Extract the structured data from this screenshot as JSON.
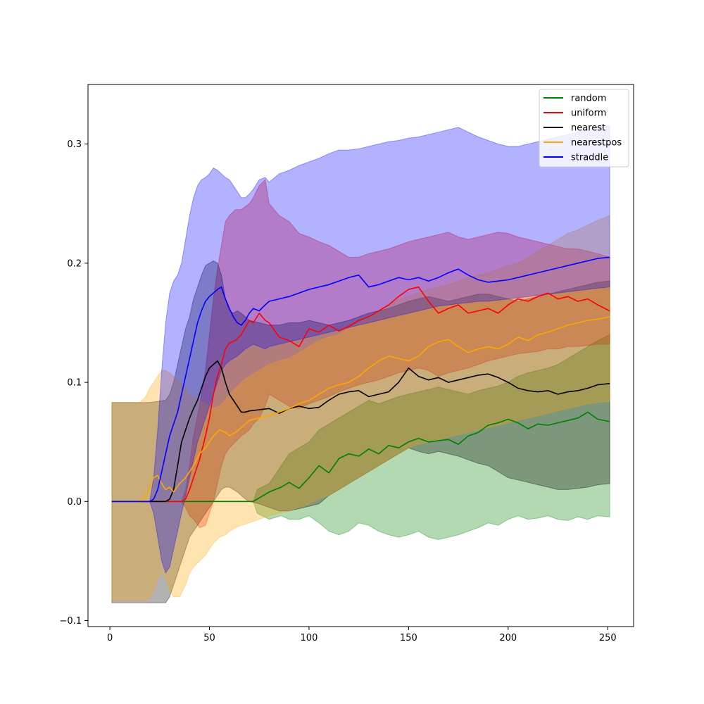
{
  "chart_data": {
    "type": "line",
    "title": "",
    "xlabel": "",
    "ylabel": "",
    "xlim": [
      -11,
      263
    ],
    "ylim": [
      -0.105,
      0.35
    ],
    "xticks": [
      0,
      50,
      100,
      150,
      200,
      250
    ],
    "xtick_labels": [
      "0",
      "50",
      "100",
      "150",
      "200",
      "250"
    ],
    "yticks": [
      -0.1,
      0.0,
      0.1,
      0.2,
      0.3
    ],
    "ytick_labels": [
      "−0.1",
      "0.0",
      "0.1",
      "0.2",
      "0.3"
    ],
    "grid": false,
    "legend_position": "top-right",
    "series": [
      {
        "name": "random",
        "color": "#008000",
        "x": [
          1,
          20,
          40,
          60,
          72,
          74,
          80,
          86,
          90,
          95,
          100,
          105,
          110,
          115,
          120,
          125,
          130,
          135,
          140,
          145,
          150,
          155,
          160,
          165,
          170,
          175,
          180,
          185,
          190,
          195,
          200,
          205,
          210,
          215,
          220,
          225,
          230,
          235,
          240,
          245,
          251
        ],
        "values": [
          0,
          0,
          0,
          0,
          0,
          0.002,
          0.008,
          0.012,
          0.016,
          0.011,
          0.02,
          0.03,
          0.024,
          0.036,
          0.04,
          0.038,
          0.044,
          0.04,
          0.047,
          0.045,
          0.05,
          0.053,
          0.05,
          0.051,
          0.052,
          0.048,
          0.055,
          0.058,
          0.064,
          0.066,
          0.069,
          0.066,
          0.061,
          0.065,
          0.064,
          0.066,
          0.068,
          0.07,
          0.075,
          0.069,
          0.067
        ],
        "upper": [
          0,
          0,
          0,
          0,
          0,
          0.01,
          0.015,
          0.03,
          0.04,
          0.045,
          0.05,
          0.06,
          0.065,
          0.07,
          0.075,
          0.08,
          0.085,
          0.082,
          0.085,
          0.088,
          0.09,
          0.092,
          0.094,
          0.096,
          0.094,
          0.092,
          0.09,
          0.093,
          0.095,
          0.097,
          0.1,
          0.105,
          0.108,
          0.11,
          0.112,
          0.115,
          0.12,
          0.125,
          0.13,
          0.135,
          0.14
        ],
        "lower": [
          0,
          0,
          0,
          0,
          0,
          -0.01,
          -0.015,
          -0.012,
          -0.015,
          -0.015,
          -0.012,
          -0.018,
          -0.025,
          -0.028,
          -0.025,
          -0.018,
          -0.02,
          -0.025,
          -0.028,
          -0.03,
          -0.028,
          -0.025,
          -0.03,
          -0.032,
          -0.03,
          -0.028,
          -0.025,
          -0.022,
          -0.018,
          -0.02,
          -0.015,
          -0.012,
          -0.015,
          -0.014,
          -0.012,
          -0.015,
          -0.016,
          -0.013,
          -0.015,
          -0.012,
          -0.013
        ]
      },
      {
        "name": "uniform",
        "color": "#ff0000",
        "x": [
          1,
          20,
          36,
          38,
          40,
          42,
          45,
          48,
          50,
          52,
          54,
          56,
          58,
          60,
          63,
          66,
          70,
          72,
          75,
          78,
          80,
          85,
          90,
          95,
          100,
          105,
          110,
          115,
          120,
          125,
          130,
          135,
          140,
          145,
          150,
          155,
          160,
          165,
          170,
          175,
          180,
          185,
          190,
          195,
          200,
          205,
          210,
          215,
          220,
          225,
          230,
          235,
          240,
          245,
          251
        ],
        "values": [
          0,
          0,
          0,
          0.002,
          0.01,
          0.02,
          0.035,
          0.055,
          0.07,
          0.09,
          0.105,
          0.115,
          0.128,
          0.133,
          0.135,
          0.14,
          0.152,
          0.15,
          0.158,
          0.152,
          0.15,
          0.138,
          0.135,
          0.13,
          0.145,
          0.142,
          0.148,
          0.143,
          0.147,
          0.152,
          0.155,
          0.16,
          0.165,
          0.172,
          0.178,
          0.18,
          0.168,
          0.158,
          0.162,
          0.165,
          0.158,
          0.16,
          0.162,
          0.158,
          0.165,
          0.17,
          0.168,
          0.172,
          0.175,
          0.17,
          0.172,
          0.168,
          0.17,
          0.165,
          0.16
        ],
        "upper": [
          0,
          0,
          0,
          0.01,
          0.03,
          0.055,
          0.08,
          0.11,
          0.14,
          0.17,
          0.195,
          0.215,
          0.235,
          0.24,
          0.245,
          0.245,
          0.25,
          0.255,
          0.265,
          0.27,
          0.25,
          0.24,
          0.235,
          0.225,
          0.222,
          0.218,
          0.215,
          0.21,
          0.205,
          0.205,
          0.208,
          0.21,
          0.212,
          0.215,
          0.218,
          0.22,
          0.222,
          0.224,
          0.226,
          0.222,
          0.22,
          0.222,
          0.224,
          0.226,
          0.225,
          0.222,
          0.22,
          0.218,
          0.216,
          0.214,
          0.212,
          0.212,
          0.21,
          0.208,
          0.205
        ],
        "lower": [
          0,
          0,
          0,
          -0.005,
          -0.012,
          -0.015,
          -0.022,
          -0.02,
          -0.01,
          0.0,
          0.015,
          0.03,
          0.04,
          0.045,
          0.05,
          0.055,
          0.06,
          0.065,
          0.07,
          0.08,
          0.09,
          0.085,
          0.08,
          0.078,
          0.082,
          0.085,
          0.088,
          0.092,
          0.095,
          0.098,
          0.1,
          0.102,
          0.105,
          0.108,
          0.11,
          0.112,
          0.11,
          0.105,
          0.108,
          0.11,
          0.112,
          0.115,
          0.118,
          0.12,
          0.122,
          0.124,
          0.125,
          0.126,
          0.128,
          0.128,
          0.13,
          0.13,
          0.131,
          0.132,
          0.132
        ]
      },
      {
        "name": "nearest",
        "color": "#000000",
        "x": [
          1,
          20,
          28,
          30,
          32,
          34,
          36,
          38,
          40,
          42,
          44,
          46,
          48,
          50,
          52,
          54,
          56,
          58,
          60,
          62,
          64,
          66,
          68,
          70,
          75,
          80,
          85,
          90,
          95,
          100,
          105,
          110,
          115,
          120,
          125,
          130,
          135,
          140,
          145,
          150,
          155,
          160,
          165,
          170,
          175,
          180,
          185,
          190,
          195,
          200,
          205,
          210,
          215,
          220,
          225,
          230,
          235,
          240,
          245,
          251
        ],
        "values": [
          0,
          0,
          0,
          0.002,
          0.01,
          0.03,
          0.05,
          0.06,
          0.07,
          0.078,
          0.085,
          0.095,
          0.105,
          0.112,
          0.115,
          0.118,
          0.112,
          0.1,
          0.09,
          0.085,
          0.08,
          0.075,
          0.075,
          0.076,
          0.077,
          0.078,
          0.074,
          0.078,
          0.08,
          0.078,
          0.079,
          0.085,
          0.09,
          0.092,
          0.093,
          0.088,
          0.09,
          0.092,
          0.1,
          0.112,
          0.105,
          0.102,
          0.104,
          0.1,
          0.102,
          0.104,
          0.106,
          0.107,
          0.104,
          0.1,
          0.095,
          0.093,
          0.092,
          0.093,
          0.09,
          0.092,
          0.093,
          0.095,
          0.098,
          0.099
        ],
        "upper": [
          0.083,
          0.083,
          0.085,
          0.09,
          0.1,
          0.115,
          0.13,
          0.145,
          0.155,
          0.17,
          0.18,
          0.19,
          0.198,
          0.2,
          0.202,
          0.2,
          0.19,
          0.17,
          0.16,
          0.158,
          0.16,
          0.158,
          0.155,
          0.152,
          0.15,
          0.148,
          0.148,
          0.15,
          0.15,
          0.152,
          0.15,
          0.148,
          0.15,
          0.152,
          0.155,
          0.158,
          0.16,
          0.162,
          0.165,
          0.168,
          0.17,
          0.172,
          0.17,
          0.168,
          0.17,
          0.172,
          0.174,
          0.174,
          0.172,
          0.17,
          0.168,
          0.17,
          0.172,
          0.174,
          0.176,
          0.178,
          0.18,
          0.182,
          0.184,
          0.185
        ],
        "lower": [
          -0.085,
          -0.085,
          -0.085,
          -0.08,
          -0.07,
          -0.06,
          -0.05,
          -0.04,
          -0.03,
          -0.025,
          -0.02,
          -0.015,
          -0.01,
          -0.005,
          0.0,
          0.005,
          0.01,
          0.012,
          0.012,
          0.01,
          0.008,
          0.005,
          0.002,
          0.0,
          -0.002,
          -0.005,
          -0.008,
          -0.008,
          -0.006,
          -0.004,
          -0.002,
          0.005,
          0.01,
          0.015,
          0.02,
          0.025,
          0.03,
          0.035,
          0.04,
          0.045,
          0.042,
          0.04,
          0.042,
          0.04,
          0.038,
          0.035,
          0.032,
          0.03,
          0.025,
          0.02,
          0.018,
          0.016,
          0.014,
          0.012,
          0.01,
          0.01,
          0.011,
          0.012,
          0.014,
          0.015
        ]
      },
      {
        "name": "nearestpos",
        "color": "#ffa500",
        "x": [
          1,
          15,
          18,
          20,
          22,
          24,
          26,
          28,
          30,
          32,
          35,
          38,
          40,
          42,
          45,
          48,
          50,
          52,
          55,
          58,
          60,
          63,
          66,
          70,
          75,
          80,
          85,
          90,
          95,
          100,
          105,
          110,
          115,
          120,
          125,
          130,
          135,
          140,
          145,
          150,
          155,
          160,
          165,
          170,
          175,
          180,
          185,
          190,
          195,
          200,
          205,
          210,
          215,
          220,
          225,
          230,
          235,
          240,
          245,
          251
        ],
        "values": [
          0,
          0,
          0.005,
          0.012,
          0.02,
          0.022,
          0.015,
          0.01,
          0.012,
          0.008,
          0.015,
          0.02,
          0.025,
          0.03,
          0.04,
          0.045,
          0.05,
          0.055,
          0.06,
          0.058,
          0.055,
          0.058,
          0.062,
          0.068,
          0.07,
          0.072,
          0.075,
          0.078,
          0.082,
          0.085,
          0.09,
          0.095,
          0.098,
          0.1,
          0.105,
          0.112,
          0.118,
          0.122,
          0.12,
          0.118,
          0.122,
          0.13,
          0.134,
          0.136,
          0.13,
          0.125,
          0.128,
          0.13,
          0.128,
          0.132,
          0.138,
          0.135,
          0.14,
          0.142,
          0.145,
          0.148,
          0.15,
          0.152,
          0.153,
          0.155
        ],
        "upper": [
          0.083,
          0.083,
          0.088,
          0.095,
          0.1,
          0.105,
          0.11,
          0.11,
          0.108,
          0.105,
          0.1,
          0.095,
          0.09,
          0.088,
          0.085,
          0.082,
          0.08,
          0.078,
          0.08,
          0.085,
          0.09,
          0.095,
          0.1,
          0.105,
          0.11,
          0.115,
          0.118,
          0.12,
          0.125,
          0.13,
          0.135,
          0.138,
          0.14,
          0.145,
          0.15,
          0.155,
          0.16,
          0.165,
          0.17,
          0.172,
          0.175,
          0.178,
          0.18,
          0.182,
          0.185,
          0.188,
          0.19,
          0.192,
          0.195,
          0.198,
          0.2,
          0.205,
          0.21,
          0.215,
          0.22,
          0.225,
          0.228,
          0.232,
          0.236,
          0.24
        ],
        "lower": [
          -0.083,
          -0.083,
          -0.083,
          -0.08,
          -0.075,
          -0.065,
          -0.06,
          -0.065,
          -0.075,
          -0.08,
          -0.08,
          -0.07,
          -0.06,
          -0.055,
          -0.05,
          -0.045,
          -0.04,
          -0.035,
          -0.03,
          -0.028,
          -0.025,
          -0.022,
          -0.02,
          -0.018,
          -0.015,
          -0.012,
          -0.01,
          -0.008,
          -0.005,
          -0.002,
          0.002,
          0.005,
          0.01,
          0.015,
          0.02,
          0.025,
          0.03,
          0.035,
          0.04,
          0.045,
          0.048,
          0.05,
          0.052,
          0.054,
          0.056,
          0.058,
          0.06,
          0.062,
          0.064,
          0.066,
          0.068,
          0.07,
          0.072,
          0.074,
          0.076,
          0.078,
          0.08,
          0.082,
          0.083,
          0.084
        ]
      },
      {
        "name": "straddle",
        "color": "#0000ff",
        "x": [
          1,
          20,
          22,
          24,
          26,
          28,
          30,
          32,
          34,
          36,
          38,
          40,
          42,
          44,
          46,
          48,
          50,
          52,
          54,
          56,
          58,
          60,
          62,
          64,
          66,
          68,
          70,
          72,
          75,
          78,
          80,
          85,
          90,
          95,
          100,
          105,
          110,
          115,
          120,
          125,
          130,
          135,
          140,
          145,
          150,
          155,
          160,
          165,
          170,
          175,
          180,
          185,
          190,
          195,
          200,
          205,
          210,
          215,
          220,
          225,
          230,
          235,
          240,
          245,
          251
        ],
        "values": [
          0,
          0,
          0.002,
          0.01,
          0.025,
          0.04,
          0.055,
          0.065,
          0.075,
          0.09,
          0.105,
          0.12,
          0.135,
          0.15,
          0.16,
          0.168,
          0.172,
          0.175,
          0.178,
          0.18,
          0.17,
          0.162,
          0.155,
          0.15,
          0.148,
          0.152,
          0.158,
          0.162,
          0.16,
          0.165,
          0.168,
          0.17,
          0.172,
          0.175,
          0.178,
          0.18,
          0.182,
          0.185,
          0.188,
          0.19,
          0.18,
          0.182,
          0.185,
          0.188,
          0.186,
          0.188,
          0.185,
          0.188,
          0.192,
          0.195,
          0.19,
          0.186,
          0.184,
          0.185,
          0.186,
          0.188,
          0.19,
          0.192,
          0.194,
          0.196,
          0.198,
          0.2,
          0.202,
          0.204,
          0.205
        ],
        "upper": [
          0,
          0,
          0.02,
          0.06,
          0.11,
          0.15,
          0.175,
          0.185,
          0.19,
          0.2,
          0.22,
          0.24,
          0.255,
          0.265,
          0.27,
          0.272,
          0.275,
          0.28,
          0.278,
          0.275,
          0.272,
          0.27,
          0.265,
          0.26,
          0.255,
          0.255,
          0.258,
          0.262,
          0.27,
          0.272,
          0.268,
          0.275,
          0.278,
          0.282,
          0.285,
          0.288,
          0.292,
          0.295,
          0.295,
          0.296,
          0.298,
          0.3,
          0.302,
          0.303,
          0.305,
          0.306,
          0.308,
          0.31,
          0.312,
          0.314,
          0.31,
          0.306,
          0.303,
          0.3,
          0.298,
          0.298,
          0.3,
          0.302,
          0.304,
          0.306,
          0.308,
          0.31,
          0.312,
          0.314,
          0.315
        ],
        "lower": [
          0,
          0,
          -0.01,
          -0.03,
          -0.05,
          -0.06,
          -0.055,
          -0.04,
          -0.025,
          -0.01,
          0.005,
          0.02,
          0.035,
          0.05,
          0.06,
          0.07,
          0.08,
          0.09,
          0.1,
          0.11,
          0.115,
          0.118,
          0.12,
          0.122,
          0.125,
          0.128,
          0.13,
          0.132,
          0.13,
          0.128,
          0.13,
          0.132,
          0.134,
          0.136,
          0.138,
          0.14,
          0.142,
          0.144,
          0.146,
          0.148,
          0.15,
          0.152,
          0.154,
          0.156,
          0.158,
          0.16,
          0.162,
          0.164,
          0.165,
          0.166,
          0.167,
          0.168,
          0.168,
          0.169,
          0.17,
          0.171,
          0.172,
          0.173,
          0.174,
          0.175,
          0.176,
          0.177,
          0.178,
          0.179,
          0.18
        ]
      }
    ]
  }
}
